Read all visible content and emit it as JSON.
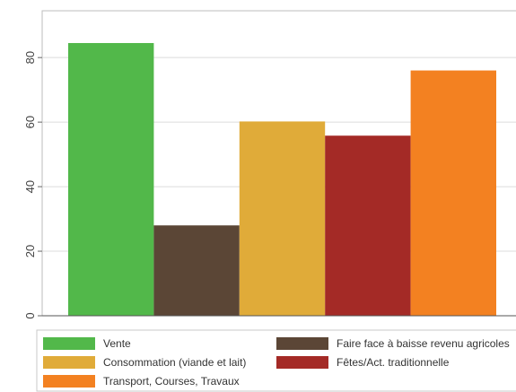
{
  "chart_data": {
    "type": "bar",
    "title": "",
    "xlabel": "",
    "ylabel": "",
    "ylim": [
      0,
      90
    ],
    "yticks": [
      0,
      20,
      40,
      60,
      80
    ],
    "grid": true,
    "legend_position": "bottom",
    "series": [
      {
        "name": "Vente",
        "value": 84.5,
        "color": "#52b84a"
      },
      {
        "name": "Faire face à baisse revenu agricoles",
        "value": 28,
        "color": "#5b4636"
      },
      {
        "name": "Consommation (viande et lait)",
        "value": 60.2,
        "color": "#e0ab39"
      },
      {
        "name": "Fêtes/Act. traditionnelle",
        "value": 55.8,
        "color": "#a42a26"
      },
      {
        "name": "Transport, Courses, Travaux",
        "value": 76,
        "color": "#f38121"
      }
    ]
  }
}
